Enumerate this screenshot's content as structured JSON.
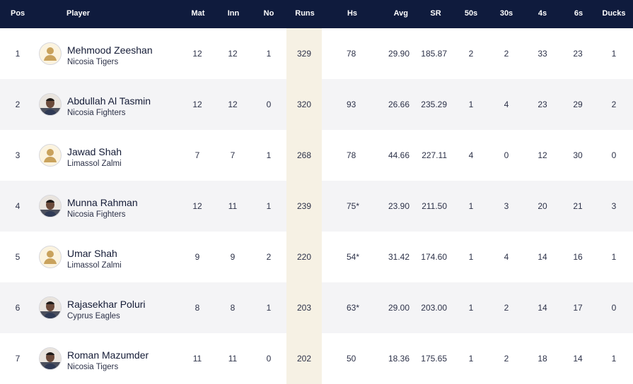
{
  "columns": {
    "pos": "Pos",
    "player": "Player",
    "mat": "Mat",
    "inn": "Inn",
    "no": "No",
    "runs": "Runs",
    "hs": "Hs",
    "avg": "Avg",
    "sr": "SR",
    "fifties": "50s",
    "thirties": "30s",
    "fours": "4s",
    "sixes": "6s",
    "ducks": "Ducks"
  },
  "rows": [
    {
      "pos": "1",
      "name": "Mehmood Zeeshan",
      "team": "Nicosia Tigers",
      "mat": "12",
      "inn": "12",
      "no": "1",
      "runs": "329",
      "hs": "78",
      "avg": "29.90",
      "sr": "185.87",
      "fifties": "2",
      "thirties": "2",
      "fours": "33",
      "sixes": "23",
      "ducks": "1",
      "avatar": "placeholder-avatar-icon"
    },
    {
      "pos": "2",
      "name": "Abdullah Al Tasmin",
      "team": "Nicosia Fighters",
      "mat": "12",
      "inn": "12",
      "no": "0",
      "runs": "320",
      "hs": "93",
      "avg": "26.66",
      "sr": "235.29",
      "fifties": "1",
      "thirties": "4",
      "fours": "23",
      "sixes": "29",
      "ducks": "2",
      "avatar": "player-photo-icon"
    },
    {
      "pos": "3",
      "name": "Jawad Shah",
      "team": "Limassol Zalmi",
      "mat": "7",
      "inn": "7",
      "no": "1",
      "runs": "268",
      "hs": "78",
      "avg": "44.66",
      "sr": "227.11",
      "fifties": "4",
      "thirties": "0",
      "fours": "12",
      "sixes": "30",
      "ducks": "0",
      "avatar": "placeholder-avatar-icon"
    },
    {
      "pos": "4",
      "name": "Munna Rahman",
      "team": "Nicosia Fighters",
      "mat": "12",
      "inn": "11",
      "no": "1",
      "runs": "239",
      "hs": "75*",
      "avg": "23.90",
      "sr": "211.50",
      "fifties": "1",
      "thirties": "3",
      "fours": "20",
      "sixes": "21",
      "ducks": "3",
      "avatar": "player-photo-icon"
    },
    {
      "pos": "5",
      "name": "Umar Shah",
      "team": "Limassol Zalmi",
      "mat": "9",
      "inn": "9",
      "no": "2",
      "runs": "220",
      "hs": "54*",
      "avg": "31.42",
      "sr": "174.60",
      "fifties": "1",
      "thirties": "4",
      "fours": "14",
      "sixes": "16",
      "ducks": "1",
      "avatar": "placeholder-avatar-icon"
    },
    {
      "pos": "6",
      "name": "Rajasekhar Poluri",
      "team": "Cyprus Eagles",
      "mat": "8",
      "inn": "8",
      "no": "1",
      "runs": "203",
      "hs": "63*",
      "avg": "29.00",
      "sr": "203.00",
      "fifties": "1",
      "thirties": "2",
      "fours": "14",
      "sixes": "17",
      "ducks": "0",
      "avatar": "player-photo-icon"
    },
    {
      "pos": "7",
      "name": "Roman Mazumder",
      "team": "Nicosia Tigers",
      "mat": "11",
      "inn": "11",
      "no": "0",
      "runs": "202",
      "hs": "50",
      "avg": "18.36",
      "sr": "175.65",
      "fifties": "1",
      "thirties": "2",
      "fours": "18",
      "sixes": "14",
      "ducks": "1",
      "avatar": "player-photo-icon"
    }
  ],
  "colors": {
    "header_bg": "#0f1b3d",
    "header_text": "#ffffff",
    "runs_highlight": "#f6f1e4",
    "row_alt": "#f4f4f6"
  }
}
